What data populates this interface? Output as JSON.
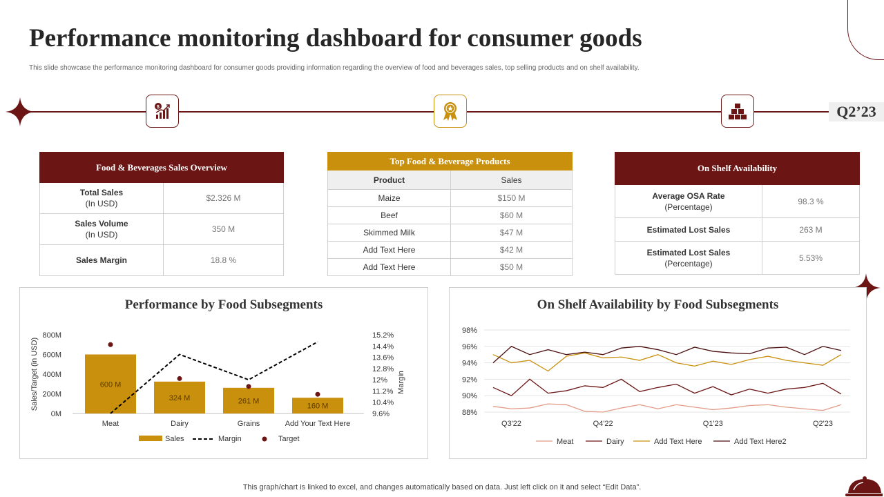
{
  "header": {
    "title": "Performance monitoring dashboard for consumer goods",
    "subtitle": "This slide showcase the performance monitoring dashboard for consumer goods providing information regarding the overview of food and beverages sales, top selling products and on shelf availability.",
    "quarter": "Q2’23"
  },
  "icons": [
    "sales-growth-icon",
    "award-badge-icon",
    "stacked-boxes-icon"
  ],
  "colors": {
    "maroon": "#6b1515",
    "gold": "#c9900d",
    "accent_light": "#e39a86"
  },
  "sales_overview": {
    "title": "Food & Beverages Sales Overview",
    "rows": [
      {
        "label": "Total Sales",
        "sub": "(In USD)",
        "value": "$2.326 M"
      },
      {
        "label": "Sales Volume",
        "sub": "(In USD)",
        "value": "350 M"
      },
      {
        "label": "Sales Margin",
        "sub": "",
        "value": "18.8 %"
      }
    ]
  },
  "top_products": {
    "title": "Top Food & Beverage Products",
    "col_product": "Product",
    "col_sales": "Sales",
    "rows": [
      {
        "product": "Maize",
        "sales": "$150 M"
      },
      {
        "product": "Beef",
        "sales": "$60 M"
      },
      {
        "product": "Skimmed Milk",
        "sales": "$47 M"
      },
      {
        "product": "Add Text Here",
        "sales": "$42 M"
      },
      {
        "product": "Add Text Here",
        "sales": "$50 M"
      }
    ]
  },
  "shelf_availability": {
    "title": "On Shelf Availability",
    "rows": [
      {
        "label": "Average OSA Rate",
        "sub": "(Percentage)",
        "value": "98.3 %"
      },
      {
        "label": "Estimated Lost Sales",
        "sub": "",
        "value": "263 M"
      },
      {
        "label": "Estimated Lost Sales",
        "sub": "(Percentage)",
        "value": "5.53%"
      }
    ]
  },
  "footer": "This graph/chart is linked to excel, and changes automatically based on data. Just left click on it and select “Edit Data”.",
  "chart_data": [
    {
      "type": "bar",
      "title": "Performance by Food Subsegments",
      "categories": [
        "Meat",
        "Dairy",
        "Grains",
        "Add Your Text Here"
      ],
      "ylabel": "Sales/Target (in USD)",
      "y2label": "Margin",
      "ylim": [
        0,
        800
      ],
      "yticks": [
        "0M",
        "200M",
        "400M",
        "600M",
        "800M"
      ],
      "y2lim": [
        9.6,
        15.2
      ],
      "y2ticks": [
        "9.6%",
        "10.4%",
        "11.2%",
        "12%",
        "12.8%",
        "13.6%",
        "14.4%",
        "15.2%"
      ],
      "series": [
        {
          "name": "Sales",
          "kind": "bar",
          "values": [
            600,
            324,
            261,
            160
          ],
          "labels": [
            "600 M",
            "324 M",
            "261 M",
            "160 M"
          ]
        },
        {
          "name": "Margin",
          "kind": "line-dashed",
          "axis": "y2",
          "values": [
            9.6,
            13.8,
            12.0,
            14.7
          ]
        },
        {
          "name": "Target",
          "kind": "dot",
          "values": [
            700,
            355,
            275,
            195
          ]
        }
      ]
    },
    {
      "type": "line",
      "title": "On Shelf Availability by Food Subsegments",
      "ylim": [
        88,
        98
      ],
      "yticks": [
        "88%",
        "90%",
        "92%",
        "94%",
        "96%",
        "98%"
      ],
      "xticks": [
        {
          "label": "Q3'22",
          "index": 1
        },
        {
          "label": "Q4'22",
          "index": 6
        },
        {
          "label": "Q1'23",
          "index": 12
        },
        {
          "label": "Q2'23",
          "index": 18
        }
      ],
      "series": [
        {
          "name": "Meat",
          "color": "#e39a86",
          "values": [
            88.7,
            88.4,
            88.5,
            89.0,
            88.9,
            88.1,
            88.0,
            88.5,
            88.9,
            88.4,
            88.9,
            88.6,
            88.3,
            88.5,
            88.8,
            88.9,
            88.6,
            88.4,
            88.2,
            88.9
          ]
        },
        {
          "name": "Dairy",
          "color": "#6b1515",
          "values": [
            91.0,
            90.0,
            92.0,
            90.3,
            90.6,
            91.2,
            91.0,
            92.0,
            90.5,
            91.0,
            91.4,
            90.3,
            91.1,
            90.1,
            90.8,
            90.3,
            90.8,
            91.0,
            91.5,
            90.2
          ]
        },
        {
          "name": "Add Text Here",
          "color": "#c9900d",
          "values": [
            95.0,
            94.0,
            94.3,
            93.0,
            94.8,
            95.2,
            94.6,
            94.7,
            94.3,
            95.0,
            94.0,
            93.6,
            94.2,
            93.8,
            94.4,
            94.8,
            94.3,
            94.0,
            93.7,
            95.0
          ]
        },
        {
          "name": "Add Text Here2",
          "color": "#4a0d0d",
          "values": [
            94.0,
            96.0,
            95.0,
            95.6,
            95.0,
            95.3,
            95.0,
            95.8,
            96.0,
            95.6,
            95.0,
            95.9,
            95.4,
            95.2,
            95.1,
            95.8,
            95.9,
            95.0,
            96.0,
            95.5
          ]
        }
      ]
    }
  ]
}
